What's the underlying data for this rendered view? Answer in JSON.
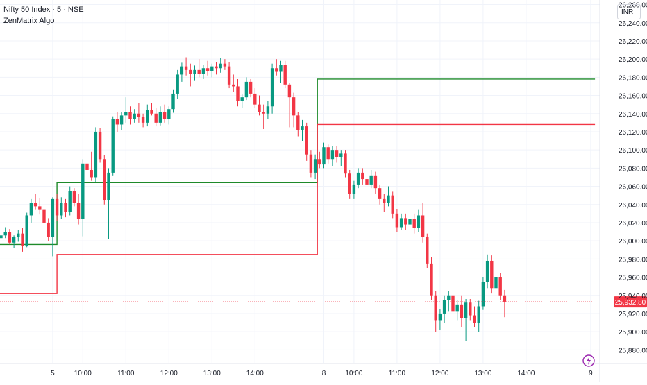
{
  "legend": {
    "symbol": "Nifty 50 Index · 5 · NSE",
    "indicator": "ZenMatrix Algo"
  },
  "currency": "INR",
  "colors": {
    "up": "#089981",
    "down": "#f23645",
    "upper_line": "#1e8a2a",
    "lower_line": "#f23645",
    "last_price": "#f23645",
    "grid": "#f0f3fa",
    "axis_text": "#131722"
  },
  "chart_data": {
    "type": "candlestick",
    "title": "Nifty 50 Index · 5 · NSE",
    "ylim": [
      25865,
      26265
    ],
    "y_ticks": [
      25880,
      25900,
      25920,
      25940,
      25960,
      25980,
      26000,
      26020,
      26040,
      26060,
      26080,
      26100,
      26120,
      26140,
      26160,
      26180,
      26200,
      26220,
      26240,
      26260
    ],
    "y_tick_labels": [
      "25,880.00",
      "25,900.00",
      "25,920.00",
      "25,940.00",
      "25,960.00",
      "25,980.00",
      "26,000.00",
      "26,020.00",
      "26,040.00",
      "26,060.00",
      "26,080.00",
      "26,100.00",
      "26,120.00",
      "26,140.00",
      "26,160.00",
      "26,180.00",
      "26,200.00",
      "26,220.00",
      "26,240.00",
      "26,260.00"
    ],
    "x_ticks": [
      {
        "bar": 12,
        "label": "5"
      },
      {
        "bar": 19,
        "label": "10:00"
      },
      {
        "bar": 29,
        "label": "11:00"
      },
      {
        "bar": 39,
        "label": "12:00"
      },
      {
        "bar": 49,
        "label": "13:00"
      },
      {
        "bar": 59,
        "label": "14:00"
      },
      {
        "bar": 75,
        "label": "8"
      },
      {
        "bar": 82,
        "label": "10:00"
      },
      {
        "bar": 92,
        "label": "11:00"
      },
      {
        "bar": 102,
        "label": "12:00"
      },
      {
        "bar": 112,
        "label": "13:00"
      },
      {
        "bar": 122,
        "label": "14:00"
      },
      {
        "bar": 137,
        "label": "9"
      }
    ],
    "last_price": 25932.8,
    "last_price_label": "25,932.80",
    "candles": [
      [
        26003,
        26010,
        25998,
        26006
      ],
      [
        26006,
        26015,
        26003,
        26010
      ],
      [
        26010,
        26013,
        25996,
        25998
      ],
      [
        25998,
        26006,
        25992,
        26004
      ],
      [
        26004,
        26012,
        25999,
        26008
      ],
      [
        26008,
        26014,
        25988,
        25994
      ],
      [
        25994,
        26031,
        25993,
        26028
      ],
      [
        26028,
        26046,
        26020,
        26042
      ],
      [
        26042,
        26052,
        26034,
        26038
      ],
      [
        26038,
        26047,
        26029,
        26034
      ],
      [
        26034,
        26044,
        26016,
        26020
      ],
      [
        26020,
        26025,
        26000,
        26004
      ],
      [
        26004,
        26048,
        25983,
        26046
      ],
      [
        26046,
        26052,
        26022,
        26028
      ],
      [
        26028,
        26048,
        26024,
        26042
      ],
      [
        26042,
        26046,
        26026,
        26032
      ],
      [
        26032,
        26060,
        26028,
        26055
      ],
      [
        26055,
        26058,
        26038,
        26042
      ],
      [
        26042,
        26052,
        26018,
        26024
      ],
      [
        26024,
        26090,
        26005,
        26085
      ],
      [
        26085,
        26103,
        26072,
        26078
      ],
      [
        26078,
        26098,
        26066,
        26070
      ],
      [
        26070,
        26125,
        26065,
        26120
      ],
      [
        26120,
        26124,
        26086,
        26090
      ],
      [
        26090,
        26094,
        26040,
        26045
      ],
      [
        26045,
        26080,
        26002,
        26075
      ],
      [
        26075,
        26137,
        26072,
        26134
      ],
      [
        26134,
        26142,
        26120,
        26128
      ],
      [
        26128,
        26142,
        26122,
        26138
      ],
      [
        26138,
        26158,
        26130,
        26142
      ],
      [
        26142,
        26148,
        26128,
        26134
      ],
      [
        26134,
        26145,
        26130,
        26140
      ],
      [
        26140,
        26152,
        26130,
        26136
      ],
      [
        26136,
        26140,
        26125,
        26130
      ],
      [
        26130,
        26150,
        26126,
        26144
      ],
      [
        26144,
        26152,
        26138,
        26140
      ],
      [
        26140,
        26146,
        26126,
        26130
      ],
      [
        26130,
        26148,
        26127,
        26142
      ],
      [
        26142,
        26150,
        26130,
        26134
      ],
      [
        26134,
        26148,
        26128,
        26145
      ],
      [
        26145,
        26166,
        26141,
        26162
      ],
      [
        26162,
        26188,
        26156,
        26183
      ],
      [
        26183,
        26196,
        26175,
        26192
      ],
      [
        26192,
        26202,
        26182,
        26188
      ],
      [
        26188,
        26195,
        26170,
        26184
      ],
      [
        26184,
        26193,
        26176,
        26188
      ],
      [
        26188,
        26200,
        26180,
        26184
      ],
      [
        26184,
        26194,
        26178,
        26190
      ],
      [
        26190,
        26198,
        26182,
        26187
      ],
      [
        26187,
        26195,
        26180,
        26192
      ],
      [
        26192,
        26197,
        26183,
        26190
      ],
      [
        26190,
        26201,
        26185,
        26195
      ],
      [
        26195,
        26200,
        26188,
        26192
      ],
      [
        26192,
        26197,
        26168,
        26172
      ],
      [
        26172,
        26183,
        26164,
        26170
      ],
      [
        26170,
        26178,
        26148,
        26154
      ],
      [
        26154,
        26162,
        26146,
        26158
      ],
      [
        26158,
        26180,
        26155,
        26175
      ],
      [
        26175,
        26178,
        26158,
        26162
      ],
      [
        26162,
        26168,
        26146,
        26150
      ],
      [
        26150,
        26160,
        26138,
        26142
      ],
      [
        26142,
        26150,
        26123,
        26140
      ],
      [
        26140,
        26154,
        26134,
        26148
      ],
      [
        26148,
        26195,
        26140,
        26190
      ],
      [
        26190,
        26200,
        26182,
        26186
      ],
      [
        26186,
        26198,
        26174,
        26194
      ],
      [
        26194,
        26198,
        26168,
        26172
      ],
      [
        26172,
        26174,
        26125,
        26158
      ],
      [
        26158,
        26163,
        26125,
        26138
      ],
      [
        26138,
        26142,
        26115,
        26122
      ],
      [
        26122,
        26133,
        26110,
        26126
      ],
      [
        26126,
        26130,
        26088,
        26095
      ],
      [
        26095,
        26100,
        26070,
        26075
      ],
      [
        26075,
        26095,
        26068,
        26090
      ],
      [
        26090,
        26098,
        26080,
        26084
      ],
      [
        26084,
        26108,
        26080,
        26103
      ],
      [
        26103,
        26106,
        26085,
        26090
      ],
      [
        26090,
        26104,
        26082,
        26100
      ],
      [
        26100,
        26104,
        26086,
        26092
      ],
      [
        26092,
        26100,
        26082,
        26096
      ],
      [
        26096,
        26100,
        26070,
        26074
      ],
      [
        26074,
        26078,
        26046,
        26052
      ],
      [
        26052,
        26066,
        26046,
        26062
      ],
      [
        26062,
        26080,
        26058,
        26075
      ],
      [
        26075,
        26080,
        26062,
        26068
      ],
      [
        26068,
        26075,
        26042,
        26062
      ],
      [
        26062,
        26078,
        26058,
        26072
      ],
      [
        26072,
        26076,
        26052,
        26058
      ],
      [
        26058,
        26062,
        26040,
        26046
      ],
      [
        26046,
        26052,
        26032,
        26042
      ],
      [
        26042,
        26060,
        26038,
        26050
      ],
      [
        26050,
        26054,
        26025,
        26030
      ],
      [
        26030,
        26035,
        26010,
        26015
      ],
      [
        26015,
        26030,
        26012,
        26025
      ],
      [
        26025,
        26030,
        26012,
        26018
      ],
      [
        26018,
        26030,
        26014,
        26024
      ],
      [
        26024,
        26030,
        26008,
        26014
      ],
      [
        26014,
        26034,
        26010,
        26028
      ],
      [
        26028,
        26042,
        25998,
        26004
      ],
      [
        26004,
        26008,
        25970,
        25975
      ],
      [
        25975,
        25982,
        25935,
        25940
      ],
      [
        25940,
        25945,
        25900,
        25912
      ],
      [
        25912,
        25925,
        25902,
        25920
      ],
      [
        25920,
        25940,
        25910,
        25935
      ],
      [
        25935,
        25945,
        25922,
        25940
      ],
      [
        25940,
        25943,
        25918,
        25922
      ],
      [
        25922,
        25935,
        25912,
        25930
      ],
      [
        25930,
        25940,
        25905,
        25915
      ],
      [
        25915,
        25936,
        25890,
        25932
      ],
      [
        25932,
        25936,
        25912,
        25918
      ],
      [
        25918,
        25928,
        25905,
        25910
      ],
      [
        25910,
        25934,
        25900,
        25928
      ],
      [
        25928,
        25960,
        25924,
        25955
      ],
      [
        25955,
        25985,
        25948,
        25978
      ],
      [
        25978,
        25984,
        25942,
        25948
      ],
      [
        25948,
        25966,
        25928,
        25960
      ],
      [
        25960,
        25965,
        25935,
        25940
      ],
      [
        25940,
        25946,
        25916,
        25933
      ]
    ],
    "series": [
      {
        "type": "step",
        "color": "upper_line",
        "x_from": -3,
        "x_to": 138,
        "segments": [
          [
            -3,
            25996
          ],
          [
            13,
            26064
          ],
          [
            73.5,
            26178
          ]
        ]
      },
      {
        "type": "step",
        "color": "lower_line",
        "x_from": -3,
        "x_to": 138,
        "segments": [
          [
            -3,
            25942
          ],
          [
            13,
            25985
          ],
          [
            73.5,
            26128
          ]
        ]
      }
    ]
  }
}
